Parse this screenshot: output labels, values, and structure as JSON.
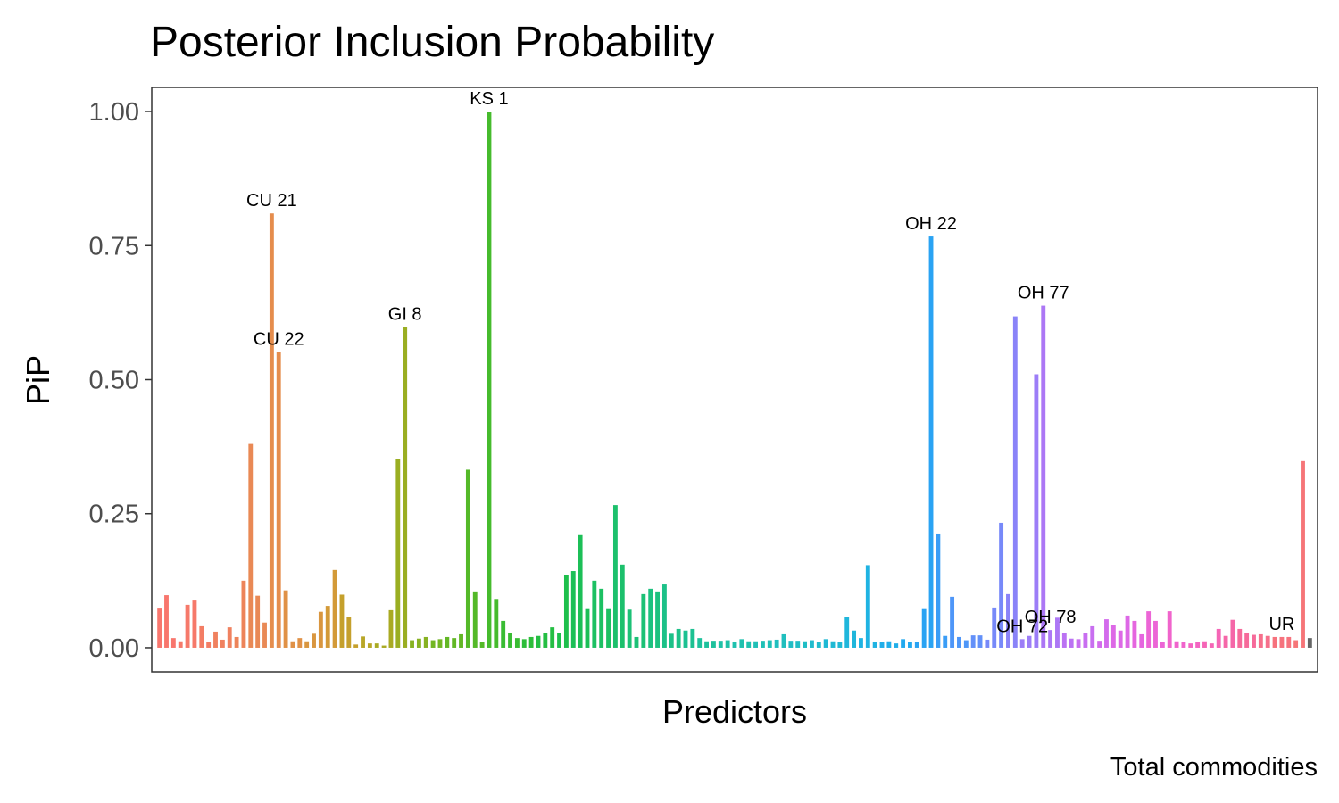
{
  "chart_data": {
    "type": "bar",
    "title": "Posterior Inclusion Probability",
    "xlabel": "Predictors",
    "ylabel": "PiP",
    "caption": "Total commodities",
    "ylim": [
      -0.045,
      1.045
    ],
    "yticks": [
      {
        "value": 0.0,
        "label": "0.00"
      },
      {
        "value": 0.25,
        "label": "0.25"
      },
      {
        "value": 0.5,
        "label": "0.50"
      },
      {
        "value": 0.75,
        "label": "0.75"
      },
      {
        "value": 1.0,
        "label": "1.00"
      }
    ],
    "grid": false,
    "legend": "none",
    "values": [
      0.073,
      0.098,
      0.018,
      0.012,
      0.08,
      0.088,
      0.04,
      0.01,
      0.03,
      0.015,
      0.038,
      0.02,
      0.125,
      0.38,
      0.097,
      0.047,
      0.81,
      0.552,
      0.107,
      0.012,
      0.018,
      0.012,
      0.026,
      0.067,
      0.078,
      0.145,
      0.099,
      0.058,
      0.006,
      0.021,
      0.008,
      0.008,
      0.004,
      0.07,
      0.352,
      0.598,
      0.014,
      0.017,
      0.02,
      0.014,
      0.016,
      0.02,
      0.018,
      0.025,
      0.332,
      0.105,
      0.01,
      1.0,
      0.091,
      0.05,
      0.027,
      0.018,
      0.016,
      0.02,
      0.022,
      0.028,
      0.038,
      0.027,
      0.136,
      0.143,
      0.21,
      0.072,
      0.125,
      0.11,
      0.072,
      0.266,
      0.155,
      0.071,
      0.02,
      0.1,
      0.11,
      0.105,
      0.118,
      0.026,
      0.035,
      0.032,
      0.035,
      0.018,
      0.012,
      0.013,
      0.013,
      0.014,
      0.01,
      0.016,
      0.012,
      0.012,
      0.013,
      0.014,
      0.015,
      0.025,
      0.013,
      0.013,
      0.012,
      0.014,
      0.01,
      0.016,
      0.012,
      0.01,
      0.058,
      0.032,
      0.018,
      0.154,
      0.01,
      0.01,
      0.012,
      0.008,
      0.016,
      0.01,
      0.01,
      0.072,
      0.767,
      0.213,
      0.022,
      0.095,
      0.02,
      0.014,
      0.023,
      0.023,
      0.015,
      0.075,
      0.233,
      0.1,
      0.618,
      0.016,
      0.022,
      0.51,
      0.638,
      0.033,
      0.056,
      0.027,
      0.017,
      0.016,
      0.027,
      0.04,
      0.013,
      0.053,
      0.042,
      0.032,
      0.06,
      0.05,
      0.025,
      0.068,
      0.05,
      0.01,
      0.068,
      0.012,
      0.01,
      0.008,
      0.01,
      0.012,
      0.008,
      0.035,
      0.022,
      0.052,
      0.035,
      0.028,
      0.024,
      0.025,
      0.022,
      0.02,
      0.02,
      0.02,
      0.014,
      0.348,
      0.018
    ],
    "colors": [
      "#f8766d",
      "#f6796a",
      "#f37d64",
      "#f0815f",
      "#ed845a",
      "#e98955",
      "#e58d4d",
      "#e09146",
      "#d9963f",
      "#d39a38",
      "#c5a02c",
      "#b8a627",
      "#a9aa23",
      "#9aae22",
      "#87b222",
      "#72b623",
      "#62b725",
      "#54b928",
      "#46bb2d",
      "#39bc33",
      "#2dbd3a",
      "#24be43",
      "#1ebf4c",
      "#1cbf57",
      "#1cc062",
      "#1cc06c",
      "#1cc176",
      "#1cc17f",
      "#1cc188",
      "#1cc192",
      "#1dc19c",
      "#1ec1a6",
      "#1fc1ae",
      "#1fc0b6",
      "#20bfbe",
      "#20bdc5",
      "#20bbcd",
      "#1fb9d4",
      "#1fb6db",
      "#1fb3e2",
      "#20aee9",
      "#22a9ef",
      "#2aa3f3",
      "#3a9df6",
      "#4e96f8",
      "#6390f9",
      "#7789f9",
      "#8a83f8",
      "#9c7df7",
      "#ac77f5",
      "#bb72f3",
      "#c86ef0",
      "#d36bec",
      "#dd68e6",
      "#e566df",
      "#ec65d6",
      "#f064cc",
      "#f364c2",
      "#f565b6",
      "#f567a8",
      "#f66a9a",
      "#f66f8b",
      "#f6727d",
      "#f67578",
      "#666666"
    ],
    "annotations": [
      {
        "label": "CU 21",
        "index": 16
      },
      {
        "label": "CU 22",
        "index": 17
      },
      {
        "label": "GI 8",
        "index": 35
      },
      {
        "label": "KS 1",
        "index": 47
      },
      {
        "label": "OH 22",
        "index": 110
      },
      {
        "label": "OH 72",
        "index": 123
      },
      {
        "label": "OH 77",
        "index": 126
      },
      {
        "label": "OH 78",
        "index": 127
      },
      {
        "label": "UR",
        "index": 160
      }
    ]
  }
}
